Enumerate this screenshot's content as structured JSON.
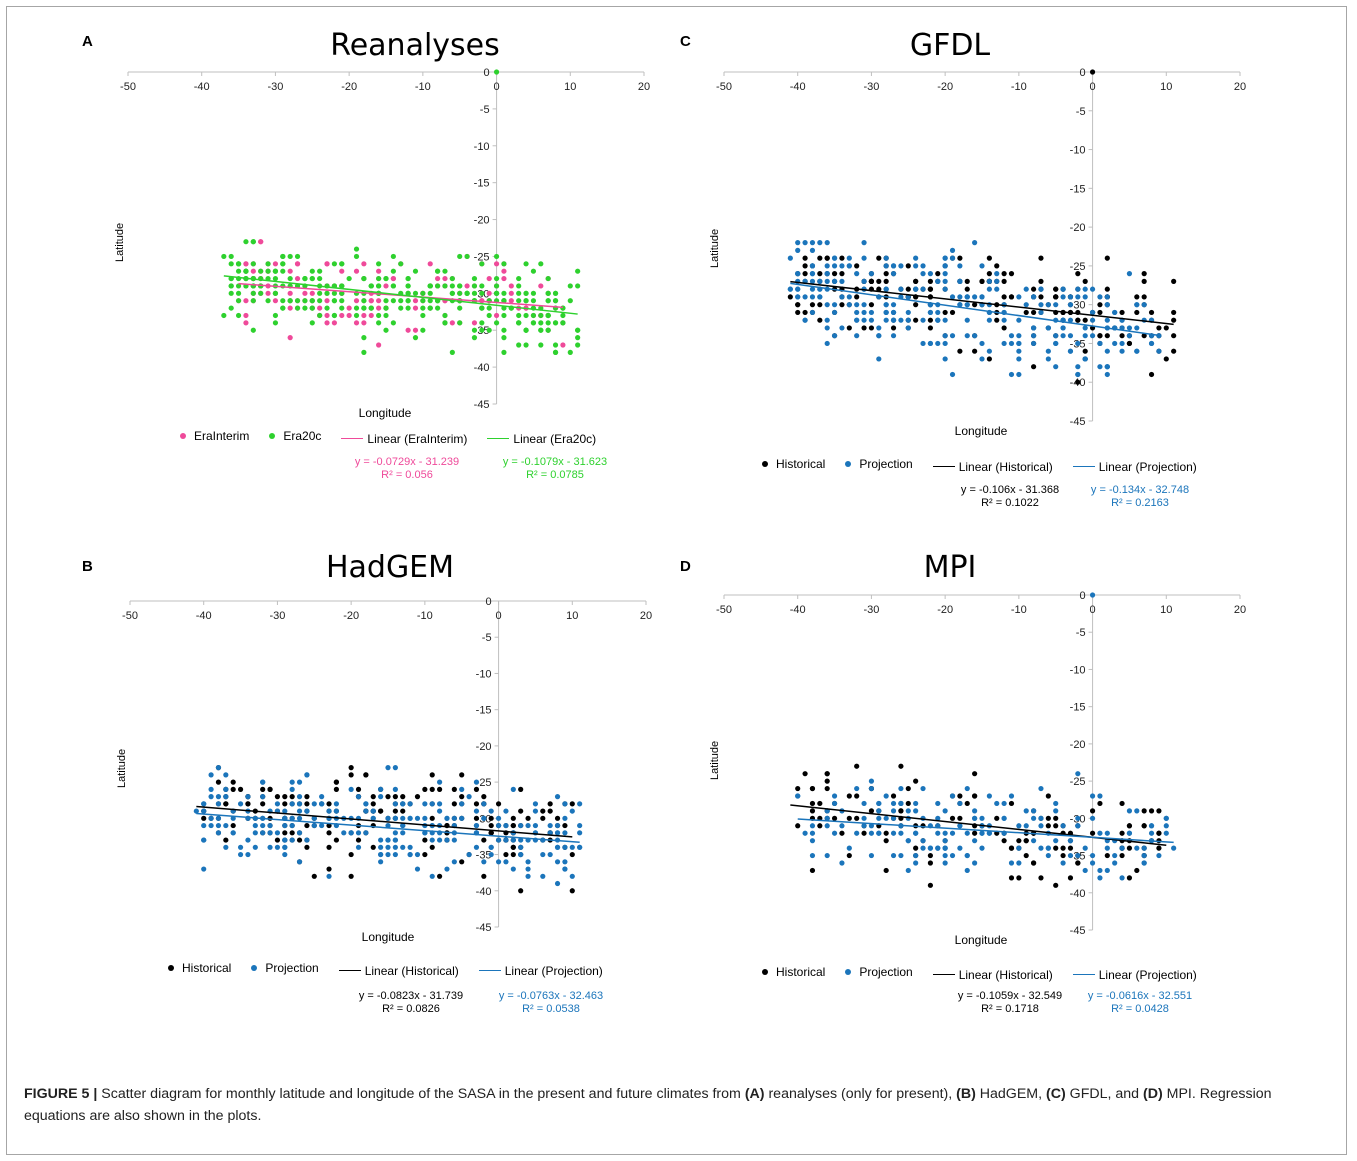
{
  "caption": {
    "label": "FIGURE 5 |",
    "text_parts": [
      " Scatter diagram for monthly latitude and longitude of the SASA in the present and future climates from ",
      "(A)",
      " reanalyses (only for present), ",
      "(B)",
      " HadGEM, ",
      "(C)",
      " GFDL, and ",
      "(D)",
      " MPI. Regression equations are also shown in the plots."
    ]
  },
  "colors": {
    "erainterim": "#ef4a9a",
    "era20c": "#2ed12e",
    "historical": "#000000",
    "projection": "#1b75bb",
    "axis": "#bfbfbf"
  },
  "chart_data": [
    {
      "id": "A",
      "type": "scatter",
      "letter": "A",
      "title": "Reanalyses",
      "xlabel": "Longitude",
      "ylabel": "Latitude",
      "xlim": [
        -50,
        20
      ],
      "ylim": [
        -45,
        0
      ],
      "xticks": [
        "-50",
        "-40",
        "-30",
        "-20",
        "-10",
        "0",
        "10",
        "20"
      ],
      "yticks": [
        "0",
        "-5",
        "-10",
        "-15",
        "-20",
        "-25",
        "-30",
        "-35",
        "-40",
        "-45"
      ],
      "grid": false,
      "legend_position": "bottom",
      "origin_point": {
        "x": 0,
        "y": 0,
        "series": "Era20c"
      },
      "series": [
        {
          "name": "EraInterim",
          "color": "#ef4a9a",
          "seed": 11,
          "n": 150,
          "xrange": [
            -35,
            9
          ],
          "ymean": -30.5,
          "ysd": 2.6,
          "ymin": -39,
          "ymax": -23,
          "fit": {
            "slope": -0.0729,
            "intercept": -31.239,
            "equation": "y = -0.0729x - 31.239",
            "r2": "R² = 0.056"
          }
        },
        {
          "name": "Era20c",
          "color": "#2ed12e",
          "seed": 23,
          "n": 330,
          "xrange": [
            -37,
            11
          ],
          "ymean": -31,
          "ysd": 2.5,
          "ymin": -38,
          "ymax": -23,
          "fit": {
            "slope": -0.1079,
            "intercept": -31.623,
            "equation": "y = -0.1079x - 31.623",
            "r2": "R² = 0.0785"
          }
        }
      ],
      "legend": [
        "EraInterim",
        "Era20c",
        "Linear (EraInterim)",
        "Linear (Era20c)"
      ]
    },
    {
      "id": "B",
      "type": "scatter",
      "letter": "B",
      "title": "HadGEM",
      "xlabel": "Longitude",
      "ylabel": "Latitude",
      "xlim": [
        -50,
        20
      ],
      "ylim": [
        -45,
        0
      ],
      "xticks": [
        "-50",
        "-40",
        "-30",
        "-20",
        "-10",
        "0",
        "10",
        "20"
      ],
      "yticks": [
        "0",
        "-5",
        "-10",
        "-15",
        "-20",
        "-25",
        "-30",
        "-35",
        "-40",
        "-45"
      ],
      "grid": false,
      "legend_position": "bottom",
      "series": [
        {
          "name": "Historical",
          "color": "#000000",
          "seed": 37,
          "n": 190,
          "xrange": [
            -41,
            10
          ],
          "ymean": -31.5,
          "ysd": 3.2,
          "ymin": -40,
          "ymax": -23,
          "fit": {
            "slope": -0.0823,
            "intercept": -31.739,
            "equation": "y = -0.0823x - 31.739",
            "r2": "R² = 0.0826"
          }
        },
        {
          "name": "Projection",
          "color": "#1b75bb",
          "seed": 41,
          "n": 260,
          "xrange": [
            -41,
            11
          ],
          "ymean": -32.5,
          "ysd": 3.2,
          "ymin": -40,
          "ymax": -22,
          "fit": {
            "slope": -0.0763,
            "intercept": -32.463,
            "equation": "y = -0.0763x - 32.463",
            "r2": "R² = 0.0538"
          }
        }
      ],
      "legend": [
        "Historical",
        "Projection",
        "Linear (Historical)",
        "Linear (Projection)"
      ]
    },
    {
      "id": "C",
      "type": "scatter",
      "letter": "C",
      "title": "GFDL",
      "xlabel": "Longitude",
      "ylabel": "Latitude",
      "xlim": [
        -50,
        20
      ],
      "ylim": [
        -45,
        0
      ],
      "xticks": [
        "-50",
        "-40",
        "-30",
        "-20",
        "-10",
        "0",
        "10",
        "20"
      ],
      "yticks": [
        "0",
        "-5",
        "-10",
        "-15",
        "-20",
        "-25",
        "-30",
        "-35",
        "-40",
        "-45"
      ],
      "grid": false,
      "legend_position": "bottom",
      "origin_point": {
        "x": 0,
        "y": 0,
        "series": "Historical"
      },
      "series": [
        {
          "name": "Historical",
          "color": "#000000",
          "seed": 53,
          "n": 210,
          "xrange": [
            -41,
            11
          ],
          "ymean": -31,
          "ysd": 3.0,
          "ymin": -40,
          "ymax": -24,
          "fit": {
            "slope": -0.106,
            "intercept": -31.368,
            "equation": "y = -0.106x - 31.368",
            "r2": "R² = 0.1022"
          }
        },
        {
          "name": "Projection",
          "color": "#1b75bb",
          "seed": 59,
          "n": 300,
          "xrange": [
            -41,
            9
          ],
          "ymean": -31.5,
          "ysd": 3.4,
          "ymin": -39,
          "ymax": -22,
          "fit": {
            "slope": -0.134,
            "intercept": -32.748,
            "equation": "y = -0.134x - 32.748",
            "r2": "R² = 0.2163"
          }
        }
      ],
      "legend": [
        "Historical",
        "Projection",
        "Linear (Historical)",
        "Linear (Projection)"
      ]
    },
    {
      "id": "D",
      "type": "scatter",
      "letter": "D",
      "title": "MPI",
      "xlabel": "Longitude",
      "ylabel": "Latitude",
      "xlim": [
        -50,
        20
      ],
      "ylim": [
        -45,
        0
      ],
      "xticks": [
        "-50",
        "-40",
        "-30",
        "-20",
        "-10",
        "0",
        "10",
        "20"
      ],
      "yticks": [
        "0",
        "-5",
        "-10",
        "-15",
        "-20",
        "-25",
        "-30",
        "-35",
        "-40",
        "-45"
      ],
      "grid": false,
      "legend_position": "bottom",
      "origin_point": {
        "x": 0,
        "y": 0,
        "series": "Projection"
      },
      "series": [
        {
          "name": "Historical",
          "color": "#000000",
          "seed": 71,
          "n": 140,
          "xrange": [
            -41,
            10
          ],
          "ymean": -31.5,
          "ysd": 3.4,
          "ymin": -39.5,
          "ymax": -23.5,
          "fit": {
            "slope": -0.1059,
            "intercept": -32.549,
            "equation": "y = -0.1059x - 32.549",
            "r2": "R² = 0.1718"
          }
        },
        {
          "name": "Projection",
          "color": "#1b75bb",
          "seed": 79,
          "n": 180,
          "xrange": [
            -40,
            11
          ],
          "ymean": -33,
          "ysd": 2.6,
          "ymin": -38.5,
          "ymax": -23.5,
          "fit": {
            "slope": -0.0616,
            "intercept": -32.551,
            "equation": "y = -0.0616x - 32.551",
            "r2": "R² = 0.0428"
          }
        }
      ],
      "legend": [
        "Historical",
        "Projection",
        "Linear (Historical)",
        "Linear (Projection)"
      ]
    }
  ]
}
